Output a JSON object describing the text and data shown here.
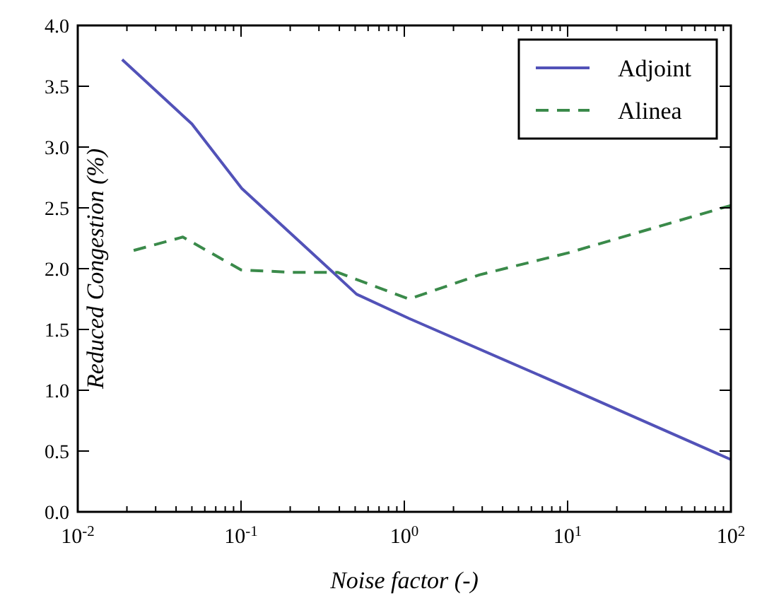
{
  "chart_data": {
    "type": "line",
    "xlabel": "Noise factor (-)",
    "ylabel": "Reduced Congestion (%)",
    "log": "x",
    "xlim": [
      0.01,
      100
    ],
    "ylim": [
      0,
      4
    ],
    "xticks": [
      {
        "value": 0.01,
        "label": "10$^{-2}$"
      },
      {
        "value": 0.1,
        "label": "10$^{-1}$"
      },
      {
        "value": 1,
        "label": "10$^{0}$"
      },
      {
        "value": 10,
        "label": "10$^{1}$"
      },
      {
        "value": 100,
        "label": "10$^{2}$"
      }
    ],
    "yticks": [
      {
        "value": 0,
        "label": "0.0"
      },
      {
        "value": 0.5,
        "label": "0.5"
      },
      {
        "value": 1,
        "label": "1.0"
      },
      {
        "value": 1.5,
        "label": "1.5"
      },
      {
        "value": 2,
        "label": "2.0"
      },
      {
        "value": 2.5,
        "label": "2.5"
      },
      {
        "value": 3,
        "label": "3.0"
      },
      {
        "value": 3.5,
        "label": "3.5"
      },
      {
        "value": 4,
        "label": "4.0"
      }
    ],
    "grid": false,
    "legend": "top right",
    "series": [
      {
        "name": "Adjoint",
        "color": "#5252b8",
        "line_style": "solid",
        "x": [
          0.0187,
          0.05,
          0.101,
          0.366,
          0.51,
          1.07,
          10.1,
          100
        ],
        "values": [
          3.72,
          3.19,
          2.66,
          1.97,
          1.79,
          1.59,
          1.02,
          0.43
        ]
      },
      {
        "name": "Alinea",
        "color": "#3a8a4a",
        "line_style": "dashed",
        "x": [
          0.022,
          0.044,
          0.1,
          0.2,
          0.39,
          1.07,
          2.9,
          10.1,
          100
        ],
        "values": [
          2.15,
          2.26,
          1.99,
          1.97,
          1.97,
          1.75,
          1.95,
          2.13,
          2.52
        ]
      }
    ]
  }
}
